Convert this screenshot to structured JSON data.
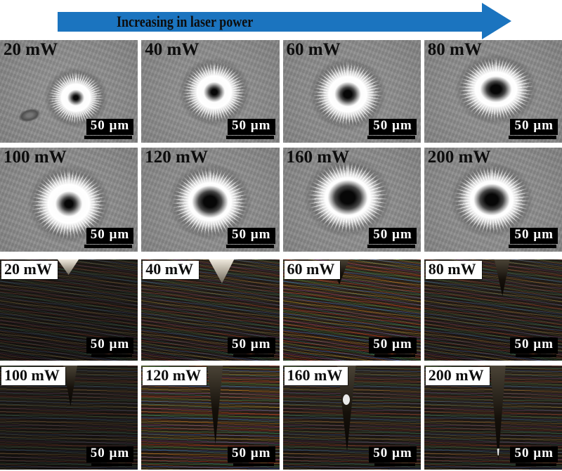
{
  "header": {
    "arrow_label": "Increasing in laser power",
    "arrow_color": "#1b74bf"
  },
  "scale_bar_label": "50 µm",
  "powers_mw": [
    20,
    40,
    60,
    80,
    100,
    120,
    160,
    200
  ],
  "sem_rows": [
    {
      "panels": [
        {
          "power_label": "20 mW"
        },
        {
          "power_label": "40 mW"
        },
        {
          "power_label": "60 mW"
        },
        {
          "power_label": "80 mW"
        }
      ]
    },
    {
      "panels": [
        {
          "power_label": "100 mW"
        },
        {
          "power_label": "120 mW"
        },
        {
          "power_label": "160 mW"
        },
        {
          "power_label": "200 mW"
        }
      ]
    }
  ],
  "optical_rows": [
    {
      "panels": [
        {
          "power_label": "20 mW"
        },
        {
          "power_label": "40 mW"
        },
        {
          "power_label": "60 mW"
        },
        {
          "power_label": "80 mW"
        }
      ]
    },
    {
      "panels": [
        {
          "power_label": "100 mW"
        },
        {
          "power_label": "120 mW"
        },
        {
          "power_label": "160 mW"
        },
        {
          "power_label": "200 mW"
        }
      ]
    }
  ]
}
